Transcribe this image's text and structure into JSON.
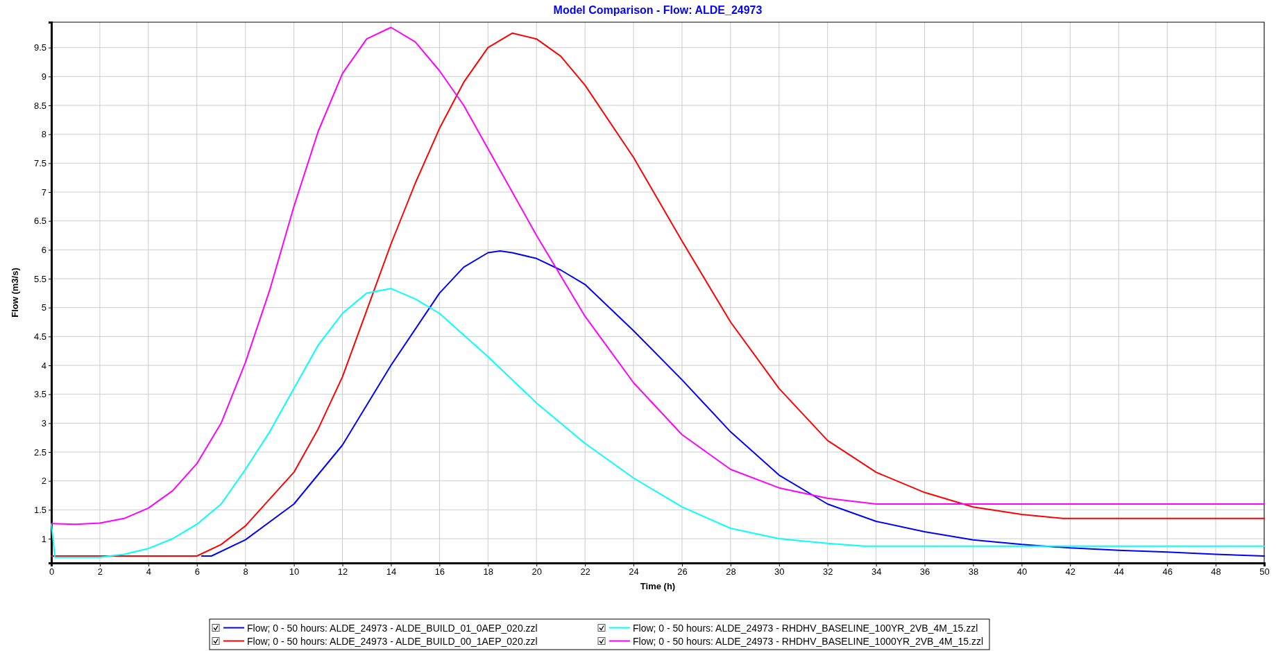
{
  "chart_data": {
    "type": "line",
    "title": "Model Comparison - Flow: ALDE_24973",
    "xlabel": "Time (h)",
    "ylabel": "Flow (m3/s)",
    "xlim": [
      0,
      50
    ],
    "xticks": [
      0,
      2,
      4,
      6,
      8,
      10,
      12,
      14,
      16,
      18,
      20,
      22,
      24,
      26,
      28,
      30,
      32,
      34,
      36,
      38,
      40,
      42,
      44,
      46,
      48,
      50
    ],
    "ylim": [
      0.58,
      9.94
    ],
    "yticks": [
      1,
      1.5,
      2,
      2.5,
      3,
      3.5,
      4,
      4.5,
      5,
      5.5,
      6,
      6.5,
      7,
      7.5,
      8,
      8.5,
      9,
      9.5
    ],
    "grid": true,
    "legend": "bottom",
    "line_style": "solid",
    "marker": "none",
    "series": [
      {
        "name": "Flow; 0 - 50 hours: ALDE_24973 - ALDE_BUILD_01_0AEP_020.zzl",
        "color": "#0000ff",
        "x": [
          6.2,
          6.6,
          8,
          10,
          12,
          14,
          16,
          17,
          18,
          18.5,
          19,
          20,
          21,
          22,
          24,
          26,
          28,
          30,
          32,
          34,
          36,
          38,
          40,
          42,
          44,
          46,
          48,
          50
        ],
        "values": [
          0.7,
          0.7,
          0.98,
          1.6,
          2.62,
          4.0,
          5.25,
          5.7,
          5.95,
          5.98,
          5.95,
          5.85,
          5.65,
          5.4,
          4.6,
          3.75,
          2.85,
          2.1,
          1.6,
          1.3,
          1.12,
          0.98,
          0.9,
          0.84,
          0.8,
          0.77,
          0.73,
          0.7
        ]
      },
      {
        "name": "Flow; 0 - 50 hours: ALDE_24973 - ALDE_BUILD_00_1AEP_020.zzl",
        "color": "#ff0000",
        "x": [
          0,
          6,
          7,
          8,
          10,
          11,
          12,
          13,
          14,
          15,
          16,
          17,
          18,
          19,
          20,
          21,
          22,
          24,
          26,
          28,
          30,
          32,
          34,
          36,
          38,
          40,
          41.7,
          50
        ],
        "values": [
          0.7,
          0.7,
          0.9,
          1.22,
          2.15,
          2.9,
          3.8,
          4.95,
          6.1,
          7.15,
          8.1,
          8.9,
          9.5,
          9.75,
          9.65,
          9.35,
          8.85,
          7.6,
          6.15,
          4.75,
          3.6,
          2.7,
          2.15,
          1.8,
          1.55,
          1.42,
          1.35,
          1.35
        ]
      },
      {
        "name": "Flow; 0 - 50 hours: ALDE_24973 - RHDHV_BASELINE_100YR_2VB_4M_15.zzl",
        "color": "#00ffff",
        "x": [
          0,
          0.15,
          2,
          3,
          4,
          5,
          6,
          7,
          8,
          9,
          10,
          11,
          12,
          13,
          14,
          15,
          16,
          18,
          20,
          22,
          24,
          26,
          28,
          30,
          32,
          33.5,
          50
        ],
        "values": [
          1.25,
          0.68,
          0.68,
          0.73,
          0.83,
          1.0,
          1.25,
          1.6,
          2.2,
          2.85,
          3.6,
          4.35,
          4.9,
          5.25,
          5.33,
          5.15,
          4.9,
          4.15,
          3.35,
          2.65,
          2.05,
          1.55,
          1.18,
          1.0,
          0.92,
          0.87,
          0.87
        ]
      },
      {
        "name": "Flow; 0 - 50 hours: ALDE_24973 - RHDHV_BASELINE_1000YR_2VB_4M_15.zzl",
        "color": "#ff00ff",
        "x": [
          0,
          1,
          2,
          3,
          4,
          5,
          6,
          7,
          8,
          9,
          10,
          11,
          12,
          13,
          14,
          15,
          16,
          17,
          18,
          20,
          22,
          24,
          26,
          28,
          30,
          32,
          34,
          50
        ],
        "values": [
          1.26,
          1.25,
          1.27,
          1.35,
          1.53,
          1.83,
          2.3,
          3.0,
          4.05,
          5.3,
          6.75,
          8.05,
          9.05,
          9.65,
          9.85,
          9.6,
          9.1,
          8.5,
          7.75,
          6.25,
          4.85,
          3.7,
          2.8,
          2.2,
          1.88,
          1.7,
          1.6,
          1.6
        ]
      }
    ]
  }
}
